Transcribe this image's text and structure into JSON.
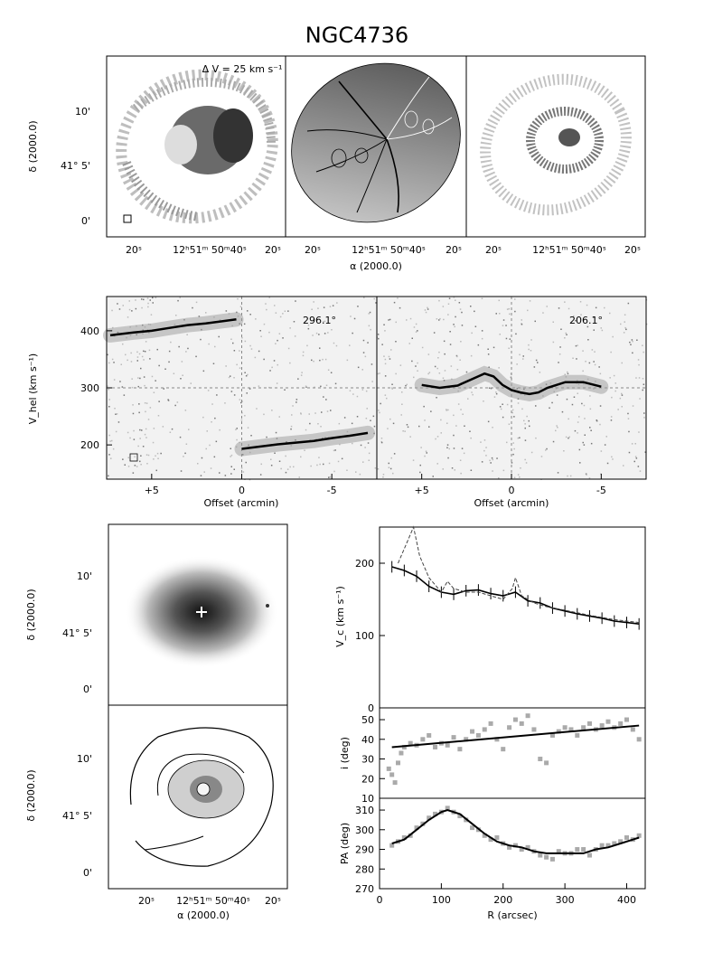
{
  "figure_title": "NGC4736",
  "chart_data": [
    {
      "type": "image",
      "panel": "velocity field, residual maps",
      "annotation": "Δ V = 25 km s⁻¹",
      "ylabel": "δ (2000.0)",
      "xlabel": "α (2000.0)",
      "yticks": [
        "10'",
        "41° 5'",
        "0'"
      ],
      "xticks": [
        "20ˢ",
        "12ʰ51ᵐ 50ᵐ40ˢ",
        "20ˢ"
      ]
    },
    {
      "type": "image",
      "panel": "position-velocity slices",
      "ylabel": "V_hel (km s⁻¹)",
      "xlabel": "Offset (arcmin)",
      "slice_angles": [
        "296.1°",
        "206.1°"
      ],
      "yticks": [
        400,
        300,
        200
      ],
      "ylim": [
        140,
        460
      ],
      "xticks": [
        "+5",
        "0",
        "-5"
      ],
      "xlim": [
        7.5,
        -7.5
      ],
      "model_curves": [
        {
          "x": [
            7.3,
            6,
            5,
            4,
            3,
            2,
            1,
            0.3
          ],
          "y": [
            392,
            397,
            400,
            405,
            410,
            413,
            417,
            420
          ]
        },
        {
          "x": [
            0,
            -1,
            -2,
            -3,
            -4,
            -5,
            -6,
            -7
          ],
          "y": [
            193,
            197,
            201,
            204,
            207,
            212,
            216,
            221
          ]
        },
        {
          "x": [
            5,
            4,
            3,
            2,
            1.5,
            1,
            0.5,
            0,
            -0.5,
            -1,
            -1.5,
            -2,
            -3,
            -4,
            -5
          ],
          "y": [
            305,
            300,
            304,
            318,
            325,
            320,
            305,
            296,
            292,
            289,
            292,
            300,
            310,
            310,
            302
          ]
        }
      ]
    },
    {
      "type": "image",
      "panel": "optical image and HI column density",
      "ylabel": "δ (2000.0)",
      "xlabel": "α (2000.0)",
      "yticks": [
        "10'",
        "41° 5'",
        "0'"
      ],
      "xticks": [
        "20ˢ",
        "12ʰ51ᵐ 50ᵐ40ˢ",
        "20ˢ"
      ]
    },
    {
      "type": "line",
      "panel": "rotation curve",
      "ylabel": "V_c (km s⁻¹)",
      "yticks": [
        0,
        100,
        200
      ],
      "ylim": [
        0,
        250
      ],
      "xlim": [
        0,
        430
      ],
      "series": [
        {
          "name": "",
          "x": [
            20,
            40,
            60,
            80,
            100,
            120,
            140,
            160,
            180,
            200,
            220,
            240,
            260,
            280,
            300,
            320,
            340,
            360,
            380,
            400,
            420
          ],
          "y": [
            195,
            190,
            182,
            168,
            160,
            157,
            162,
            163,
            158,
            155,
            160,
            148,
            145,
            138,
            134,
            130,
            127,
            124,
            120,
            118,
            116
          ]
        },
        {
          "name": "",
          "x": [
            30,
            45,
            55,
            65,
            80,
            100,
            110,
            120,
            140,
            160,
            180,
            200,
            215,
            220,
            230,
            250,
            270,
            300,
            340,
            380,
            420
          ],
          "y": [
            200,
            230,
            250,
            210,
            180,
            160,
            175,
            165,
            160,
            160,
            155,
            150,
            165,
            180,
            155,
            145,
            140,
            135,
            128,
            122,
            118
          ]
        }
      ]
    },
    {
      "type": "scatter",
      "panel": "inclination",
      "ylabel": "i (deg)",
      "yticks": [
        10,
        20,
        30,
        40,
        50
      ],
      "ylim": [
        10,
        56
      ],
      "xlim": [
        0,
        430
      ],
      "fit": {
        "x": [
          20,
          420
        ],
        "y": [
          36,
          47
        ]
      },
      "points": {
        "x": [
          15,
          20,
          25,
          30,
          35,
          40,
          50,
          60,
          70,
          80,
          90,
          100,
          110,
          120,
          130,
          140,
          150,
          160,
          170,
          180,
          190,
          200,
          210,
          220,
          230,
          240,
          250,
          260,
          270,
          280,
          290,
          300,
          310,
          320,
          330,
          340,
          350,
          360,
          370,
          380,
          390,
          400,
          410,
          420
        ],
        "y": [
          25,
          22,
          18,
          28,
          33,
          36,
          38,
          37,
          40,
          42,
          36,
          38,
          37,
          41,
          35,
          40,
          44,
          42,
          45,
          48,
          40,
          35,
          46,
          50,
          48,
          52,
          45,
          30,
          28,
          42,
          44,
          46,
          45,
          42,
          46,
          48,
          45,
          47,
          49,
          46,
          48,
          50,
          45,
          40
        ]
      }
    },
    {
      "type": "scatter",
      "panel": "position angle",
      "ylabel": "PA (deg)",
      "xlabel": "R (arcsec)",
      "yticks": [
        270,
        280,
        290,
        300,
        310
      ],
      "ylim": [
        270,
        316
      ],
      "xticks": [
        0,
        100,
        200,
        300,
        400
      ],
      "xlim": [
        0,
        430
      ],
      "fit": {
        "x": [
          20,
          40,
          60,
          80,
          100,
          110,
          130,
          150,
          170,
          190,
          210,
          230,
          250,
          270,
          290,
          310,
          330,
          350,
          370,
          390,
          410,
          420
        ],
        "y": [
          293,
          295,
          300,
          305,
          309,
          310,
          308,
          303,
          298,
          294,
          292,
          291,
          289,
          288,
          288,
          288,
          288,
          290,
          291,
          293,
          295,
          296
        ]
      },
      "points": {
        "x": [
          20,
          30,
          40,
          50,
          60,
          70,
          80,
          90,
          100,
          110,
          120,
          130,
          140,
          150,
          160,
          170,
          180,
          190,
          200,
          210,
          220,
          230,
          240,
          250,
          260,
          270,
          280,
          290,
          300,
          310,
          320,
          330,
          340,
          350,
          360,
          370,
          380,
          390,
          400,
          410,
          420
        ],
        "y": [
          292,
          294,
          296,
          297,
          301,
          303,
          306,
          308,
          309,
          311,
          309,
          307,
          305,
          301,
          300,
          297,
          295,
          296,
          293,
          291,
          292,
          290,
          291,
          289,
          287,
          286,
          285,
          289,
          288,
          288,
          290,
          290,
          287,
          290,
          292,
          292,
          293,
          294,
          296,
          295,
          297
        ]
      }
    }
  ]
}
